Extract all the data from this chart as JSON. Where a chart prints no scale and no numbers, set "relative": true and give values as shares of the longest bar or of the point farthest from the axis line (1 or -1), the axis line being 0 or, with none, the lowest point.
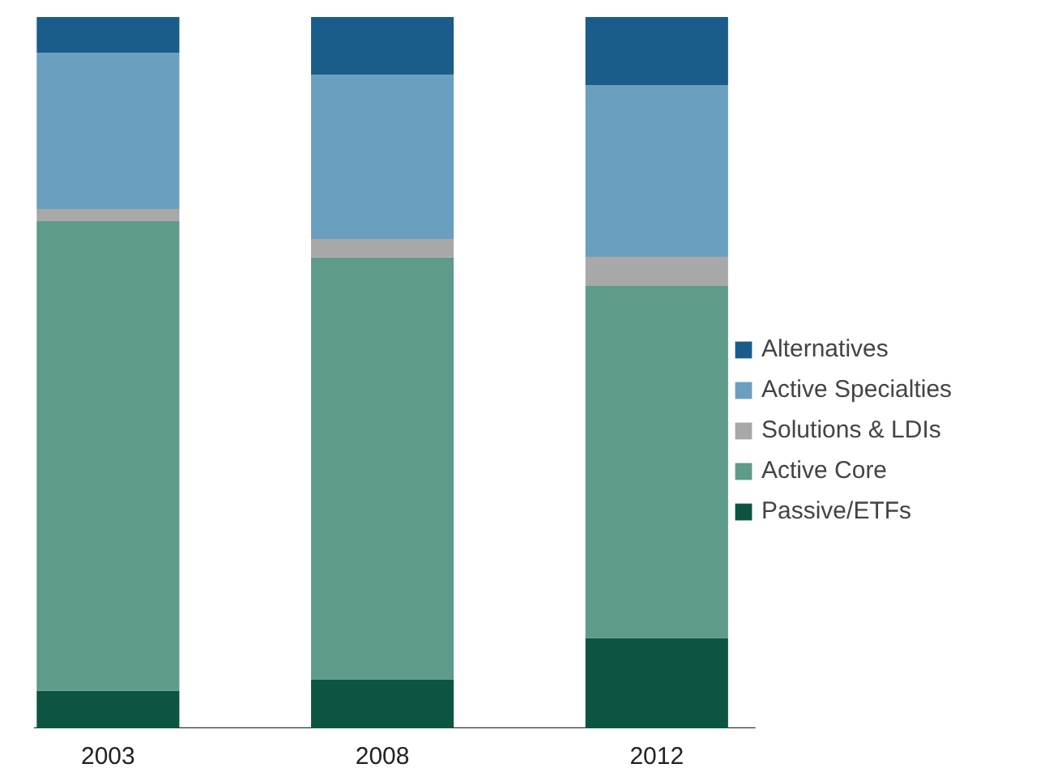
{
  "chart_data": {
    "type": "bar",
    "stacked": true,
    "relative": true,
    "legend": "right",
    "grid": false,
    "categories": [
      "2003",
      "2008",
      "2012"
    ],
    "series": [
      {
        "name": "Passive/ETFs",
        "color": "#0d5443",
        "values": [
          0.053,
          0.069,
          0.127
        ]
      },
      {
        "name": "Active Core",
        "color": "#5e9b8a",
        "values": [
          0.66,
          0.593,
          0.495
        ]
      },
      {
        "name": "Solutions & LDIs",
        "color": "#a8a8a8",
        "values": [
          0.017,
          0.026,
          0.041
        ]
      },
      {
        "name": "Active Specialties",
        "color": "#6a9fc0",
        "values": [
          0.22,
          0.231,
          0.241
        ]
      },
      {
        "name": "Alternatives",
        "color": "#1a5d8a",
        "values": [
          0.05,
          0.081,
          0.096
        ]
      }
    ]
  }
}
